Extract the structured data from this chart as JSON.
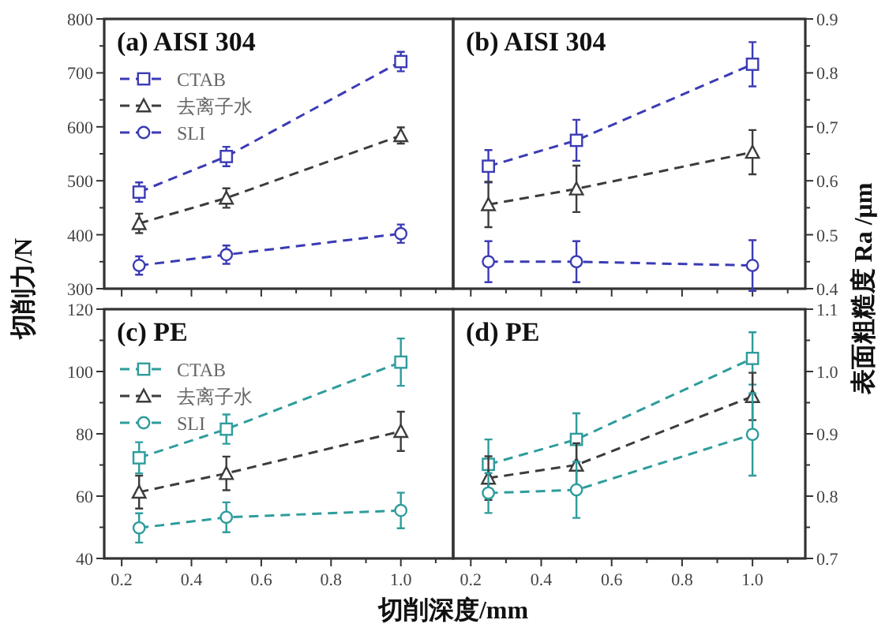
{
  "chart_data": [
    {
      "type": "line",
      "title": "(a) AISI 304",
      "ylabel": "切削力/N",
      "x": [
        0.25,
        0.5,
        1.0
      ],
      "xlim": [
        0.15,
        1.15
      ],
      "xticks": [
        0.2,
        {
          "value": 0.3,
          "label": null
        },
        0.4,
        {
          "value": 0.5,
          "label": null
        },
        0.6,
        {
          "value": 0.7,
          "label": null
        },
        0.8,
        {
          "value": 0.9,
          "label": null
        },
        1.0,
        {
          "value": 1.1,
          "label": null
        }
      ],
      "tick_labels": "y",
      "ylim": [
        300,
        800
      ],
      "yticks": [
        300,
        {
          "value": 350,
          "label": null
        },
        400,
        {
          "value": 450,
          "label": null
        },
        500,
        {
          "value": 550,
          "label": null
        },
        600,
        {
          "value": 650,
          "label": null
        },
        700,
        {
          "value": 750,
          "label": null
        },
        800
      ],
      "legend": "top left",
      "line_style": "dashed",
      "series": [
        {
          "name": "CTAB",
          "color": "#3b3bb5",
          "marker": "square",
          "values": [
            479,
            545,
            721
          ],
          "errors": [
            18,
            18,
            18
          ]
        },
        {
          "name": "去离子水",
          "color": "#3c3c3c",
          "marker": "triangle",
          "values": [
            421,
            468,
            584
          ],
          "errors": [
            18,
            18,
            15
          ]
        },
        {
          "name": "SLI",
          "color": "#3b3bb5",
          "marker": "circle",
          "values": [
            343,
            363,
            402
          ],
          "errors": [
            17,
            17,
            17
          ]
        }
      ]
    },
    {
      "type": "line",
      "title": "(b) AISI 304",
      "y2label": "表面粗糙度 Ra /μm",
      "x": [
        0.25,
        0.5,
        1.0
      ],
      "xlim": [
        0.15,
        1.15
      ],
      "xticks": [
        0.2,
        {
          "value": 0.3,
          "label": null
        },
        0.4,
        {
          "value": 0.5,
          "label": null
        },
        0.6,
        {
          "value": 0.7,
          "label": null
        },
        0.8,
        {
          "value": 0.9,
          "label": null
        },
        1.0,
        {
          "value": 1.1,
          "label": null
        }
      ],
      "tick_labels": "y",
      "y2lim": [
        0.4,
        0.9
      ],
      "y2ticks": [
        0.4,
        {
          "value": 0.45,
          "label": null
        },
        0.5,
        {
          "value": 0.55,
          "label": null
        },
        0.6,
        {
          "value": 0.65,
          "label": null
        },
        0.7,
        {
          "value": 0.75,
          "label": null
        },
        0.8,
        {
          "value": 0.85,
          "label": null
        },
        0.9
      ],
      "line_style": "dashed",
      "series": [
        {
          "color": "#3b3bb5",
          "marker": "square",
          "axis": "y2",
          "values": [
            0.627,
            0.675,
            0.816
          ],
          "errors": [
            0.03,
            0.038,
            0.041
          ]
        },
        {
          "color": "#3c3c3c",
          "marker": "triangle",
          "axis": "y2",
          "values": [
            0.556,
            0.585,
            0.653
          ],
          "errors": [
            0.042,
            0.043,
            0.041
          ]
        },
        {
          "color": "#3b3bb5",
          "marker": "circle",
          "axis": "y2",
          "values": [
            0.45,
            0.45,
            0.443
          ],
          "errors": [
            0.038,
            0.038,
            0.047
          ]
        }
      ]
    },
    {
      "type": "line",
      "title": "(c) PE",
      "xlabel": "切削深度/mm",
      "x": [
        0.25,
        0.5,
        1.0
      ],
      "xlim": [
        0.15,
        1.15
      ],
      "xticks": [
        0.2,
        {
          "value": 0.3,
          "label": null
        },
        0.4,
        {
          "value": 0.5,
          "label": null
        },
        0.6,
        {
          "value": 0.7,
          "label": null
        },
        0.8,
        {
          "value": 0.9,
          "label": null
        },
        {
          "value": 1.0,
          "label": "1.0"
        },
        {
          "value": 1.1,
          "label": null
        }
      ],
      "ylim": [
        40,
        120
      ],
      "yticks": [
        40,
        {
          "value": 50,
          "label": null
        },
        60,
        {
          "value": 70,
          "label": null
        },
        80,
        {
          "value": 90,
          "label": null
        },
        100,
        {
          "value": 110,
          "label": null
        },
        120
      ],
      "legend": "top left",
      "line_style": "dashed",
      "series": [
        {
          "name": "CTAB",
          "color": "#2e9c9c",
          "marker": "square",
          "values": [
            72.3,
            81.5,
            103
          ],
          "errors": [
            5,
            4.7,
            7.6
          ]
        },
        {
          "name": "去离子水",
          "color": "#3c3c3c",
          "marker": "triangle",
          "values": [
            61.3,
            67.3,
            80.8
          ],
          "errors": [
            5.3,
            5.4,
            6.3
          ]
        },
        {
          "name": "SLI",
          "color": "#2e9c9c",
          "marker": "circle",
          "values": [
            49.8,
            53.2,
            55.4
          ],
          "errors": [
            4.7,
            4.8,
            5.7
          ]
        }
      ]
    },
    {
      "type": "line",
      "title": "(d) PE",
      "x": [
        0.25,
        0.5,
        1.0
      ],
      "xlim": [
        0.15,
        1.15
      ],
      "xticks": [
        0.2,
        {
          "value": 0.3,
          "label": null
        },
        0.4,
        {
          "value": 0.5,
          "label": null
        },
        0.6,
        {
          "value": 0.7,
          "label": null
        },
        0.8,
        {
          "value": 0.9,
          "label": null
        },
        {
          "value": 1.0,
          "label": "1.0"
        },
        {
          "value": 1.1,
          "label": null
        }
      ],
      "y2lim": [
        0.7,
        1.1
      ],
      "y2ticks": [
        0.7,
        {
          "value": 0.75,
          "label": null
        },
        0.8,
        {
          "value": 0.85,
          "label": null
        },
        0.9,
        {
          "value": 0.95,
          "label": null
        },
        {
          "value": 1.0,
          "label": "1.0"
        },
        {
          "value": 1.05,
          "label": null
        },
        1.1
      ],
      "line_style": "dashed",
      "series": [
        {
          "color": "#2e9c9c",
          "marker": "square",
          "axis": "y2",
          "values": [
            0.851,
            0.891,
            1.021
          ],
          "errors": [
            0.04,
            0.042,
            0.042
          ]
        },
        {
          "color": "#3c3c3c",
          "marker": "triangle",
          "axis": "y2",
          "values": [
            0.829,
            0.85,
            0.96
          ],
          "errors": [
            0.035,
            0.035,
            0.038
          ]
        },
        {
          "color": "#2e9c9c",
          "marker": "circle",
          "axis": "y2",
          "values": [
            0.805,
            0.81,
            0.899
          ],
          "errors": [
            0.032,
            0.045,
            0.066
          ]
        }
      ]
    }
  ]
}
